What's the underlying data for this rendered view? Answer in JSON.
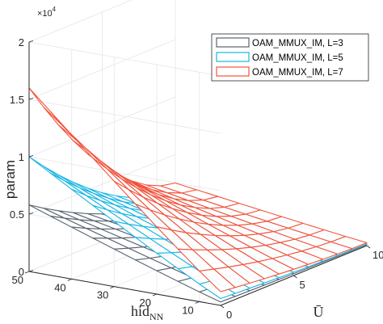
{
  "chart_data": {
    "type": "surface",
    "xlabel": "Ū",
    "ylabel_base": "hid",
    "ylabel_sub": "NN",
    "zlabel": "param",
    "z_exponent_base": "×10",
    "z_exponent_power": "4",
    "x_ticks": [
      "0",
      "5",
      "10"
    ],
    "y_ticks": [
      "10",
      "20",
      "30",
      "40",
      "50"
    ],
    "z_ticks": [
      "0",
      "0.5",
      "1",
      "1.5",
      "2"
    ],
    "xlim": [
      0,
      10
    ],
    "ylim": [
      5,
      50
    ],
    "zlim": [
      0,
      20000
    ],
    "grid": true,
    "legend_position": "top-right",
    "x_grid": [
      0,
      1,
      2,
      3,
      4,
      5,
      6,
      7,
      8,
      9,
      10
    ],
    "y_grid": [
      5,
      10,
      15,
      20,
      25,
      30,
      35,
      40,
      45,
      50
    ],
    "series": [
      {
        "name": "OAM_MMUX_IM, L=3",
        "color": "#5b6470",
        "z_at_Umin_hidmax": 5800,
        "z_at_Umin_hidmin": 300,
        "z_at_Umax_hidmax": 900,
        "z_at_Umax_hidmin": 100
      },
      {
        "name": "OAM_MMUX_IM, L=5",
        "color": "#1ab6e3",
        "z_at_Umin_hidmax": 10000,
        "z_at_Umin_hidmin": 600,
        "z_at_Umax_hidmax": 1700,
        "z_at_Umax_hidmin": 150
      },
      {
        "name": "OAM_MMUX_IM, L=7",
        "color": "#f2533c",
        "z_at_Umin_hidmax": 16000,
        "z_at_Umin_hidmin": 1200,
        "z_at_Umax_hidmax": 2500,
        "z_at_Umax_hidmin": 250
      }
    ]
  }
}
